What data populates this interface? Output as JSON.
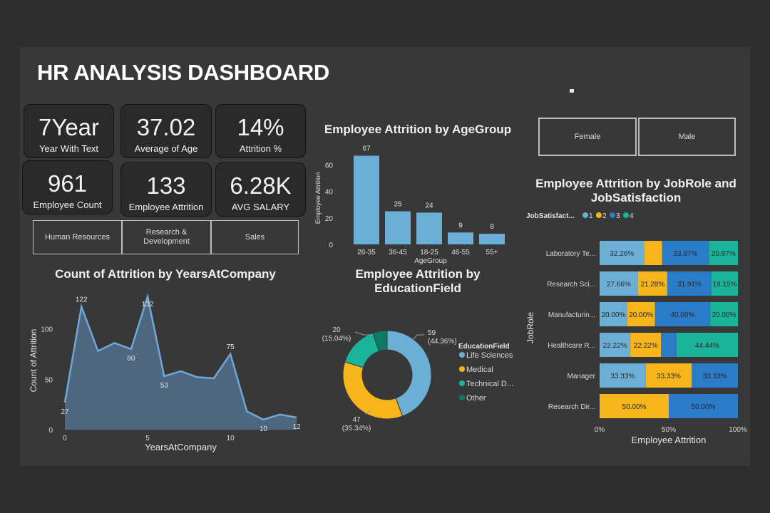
{
  "header": {
    "title": "HR ANALYSIS DASHBOARD"
  },
  "kpis": [
    {
      "value": "7Year",
      "label": "Year With Text"
    },
    {
      "value": "37.02",
      "label": "Average of Age"
    },
    {
      "value": "14%",
      "label": "Attrition %"
    },
    {
      "value": "961",
      "label": "Employee Count"
    },
    {
      "value": "133",
      "label": "Employee Attrition"
    },
    {
      "value": "6.28K",
      "label": "AVG SALARY"
    }
  ],
  "department_slicer": [
    "Human Resources",
    "Research & Development",
    "Sales"
  ],
  "gender_slicer": [
    "Female",
    "Male"
  ],
  "colors": {
    "bar": "#6baed6",
    "area_line": "#6fa8d6",
    "js1": "#6baed6",
    "js2": "#f6b51a",
    "js3": "#2a7bc8",
    "js4": "#1ab49a"
  },
  "chart_data": [
    {
      "id": "attrition_by_agegroup",
      "type": "bar",
      "title": "Employee Attrition by AgeGroup",
      "xlabel": "AgeGroup",
      "ylabel": "Employee Attrition",
      "categories": [
        "26-35",
        "36-45",
        "18-25",
        "46-55",
        "55+"
      ],
      "values": [
        67,
        25,
        24,
        9,
        8
      ],
      "ylim": [
        0,
        70
      ],
      "yticks": [
        0,
        20,
        40,
        60
      ]
    },
    {
      "id": "attrition_by_yearsatcompany",
      "type": "area",
      "title": "Count of Attrition by YearsAtCompany",
      "xlabel": "YearsAtCompany",
      "ylabel": "Count of Attrition",
      "x": [
        0,
        1,
        2,
        3,
        4,
        5,
        6,
        7,
        8,
        9,
        10,
        11,
        12,
        13,
        14
      ],
      "values": [
        27,
        122,
        78,
        86,
        80,
        132,
        53,
        58,
        52,
        51,
        75,
        18,
        10,
        15,
        12
      ],
      "labeled_points": [
        0,
        1,
        4,
        5,
        6,
        10,
        12,
        14
      ],
      "xlim": [
        0,
        14
      ],
      "ylim": [
        0,
        135
      ],
      "xticks": [
        0,
        5,
        10
      ],
      "yticks": [
        0,
        50,
        100
      ]
    },
    {
      "id": "attrition_by_educationfield",
      "type": "pie",
      "title": "Employee Attrition by EducationField",
      "legend_title": "EducationField",
      "slices": [
        {
          "name": "Life Sciences",
          "value": 59,
          "label": "59",
          "pct": "(44.36%)",
          "color": "#6baed6"
        },
        {
          "name": "Medical",
          "value": 47,
          "label": "47",
          "pct": "(35.34%)",
          "color": "#f6b51a"
        },
        {
          "name": "Technical D...",
          "value": 20,
          "label": "20",
          "pct": "(15.04%)",
          "color": "#1ab49a"
        },
        {
          "name": "Other",
          "value": 7,
          "label": "",
          "pct": "",
          "color": "#0e7a66"
        }
      ]
    },
    {
      "id": "attrition_by_jobrole_jobsatisfaction",
      "type": "bar",
      "stacked": "100%",
      "orientation": "horizontal",
      "title": "Employee Attrition by JobRole and JobSatisfaction",
      "legend_title": "JobSatisfact...",
      "legend": [
        "1",
        "2",
        "3",
        "4"
      ],
      "xlabel": "Employee Attrition",
      "ylabel": "JobRole",
      "xticks": [
        "0%",
        "50%",
        "100%"
      ],
      "categories": [
        "Laboratory Te...",
        "Research Sci...",
        "Manufacturin...",
        "Healthcare R...",
        "Manager",
        "Research Dir..."
      ],
      "series": [
        {
          "name": "1",
          "values": [
            32.26,
            27.66,
            20.0,
            22.22,
            33.33,
            0
          ],
          "labels": [
            "32.26%",
            "27.66%",
            "20.00%",
            "22.22%",
            "33.33%",
            ""
          ]
        },
        {
          "name": "2",
          "values": [
            12.9,
            21.28,
            20.0,
            22.22,
            33.33,
            50.0
          ],
          "labels": [
            "",
            "21.28%",
            "20.00%",
            "22.22%",
            "33.33%",
            "50.00%"
          ]
        },
        {
          "name": "3",
          "values": [
            33.87,
            31.91,
            40.0,
            11.12,
            33.33,
            50.0
          ],
          "labels": [
            "33.87%",
            "31.91%",
            "40.00%",
            "",
            "33.33%",
            "50.00%"
          ]
        },
        {
          "name": "4",
          "values": [
            20.97,
            19.15,
            20.0,
            44.44,
            0,
            0
          ],
          "labels": [
            "20.97%",
            "19.15%",
            "20.00%",
            "44.44%",
            "",
            ""
          ]
        }
      ]
    }
  ]
}
